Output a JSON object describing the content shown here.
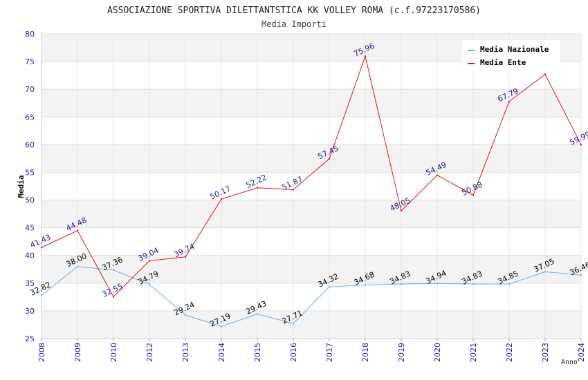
{
  "chart_data": {
    "type": "line",
    "title": "ASSOCIAZIONE SPORTIVA DILETTANTSTICA KK VOLLEY ROMA (c.f.97223170586)",
    "subtitle": "Media Importi",
    "xlabel": "Anno",
    "ylabel": "Media",
    "ylim": [
      25,
      80
    ],
    "ytick_step": 5,
    "grid": true,
    "legend_position": "top-right",
    "categories": [
      "2008",
      "2009",
      "2010",
      "2012",
      "2013",
      "2014",
      "2015",
      "2016",
      "2017",
      "2018",
      "2019",
      "2020",
      "2021",
      "2022",
      "2023",
      "2024"
    ],
    "series": [
      {
        "name": "Media Nazionale",
        "color": "#6aaee6",
        "label_color": "#000000",
        "values": [
          32.82,
          38.0,
          37.36,
          34.79,
          29.24,
          27.19,
          29.43,
          27.71,
          34.32,
          34.68,
          34.83,
          34.94,
          34.83,
          34.85,
          37.05,
          36.46
        ],
        "labels": [
          "32.82",
          "38.00",
          "37.36",
          "34.79",
          "29.24",
          "27.19",
          "29.43",
          "27.71",
          "34.32",
          "34.68",
          "34.83",
          "34.94",
          "34.83",
          "34.85",
          "37.05",
          "36.46"
        ]
      },
      {
        "name": "Media Ente",
        "color": "#e8101a",
        "label_color": "#1a1a8c",
        "values": [
          41.43,
          44.48,
          32.55,
          39.04,
          39.74,
          50.17,
          52.22,
          51.87,
          57.45,
          75.96,
          48.05,
          54.49,
          50.88,
          67.79,
          72.7,
          59.99
        ],
        "labels": [
          "41.43",
          "44.48",
          "32.55",
          "39.04",
          "39.74",
          "50.17",
          "52.22",
          "51.87",
          "57.45",
          "75.96",
          "48.05",
          "54.49",
          "50.88",
          "67.79",
          "",
          "59.99"
        ]
      }
    ]
  }
}
